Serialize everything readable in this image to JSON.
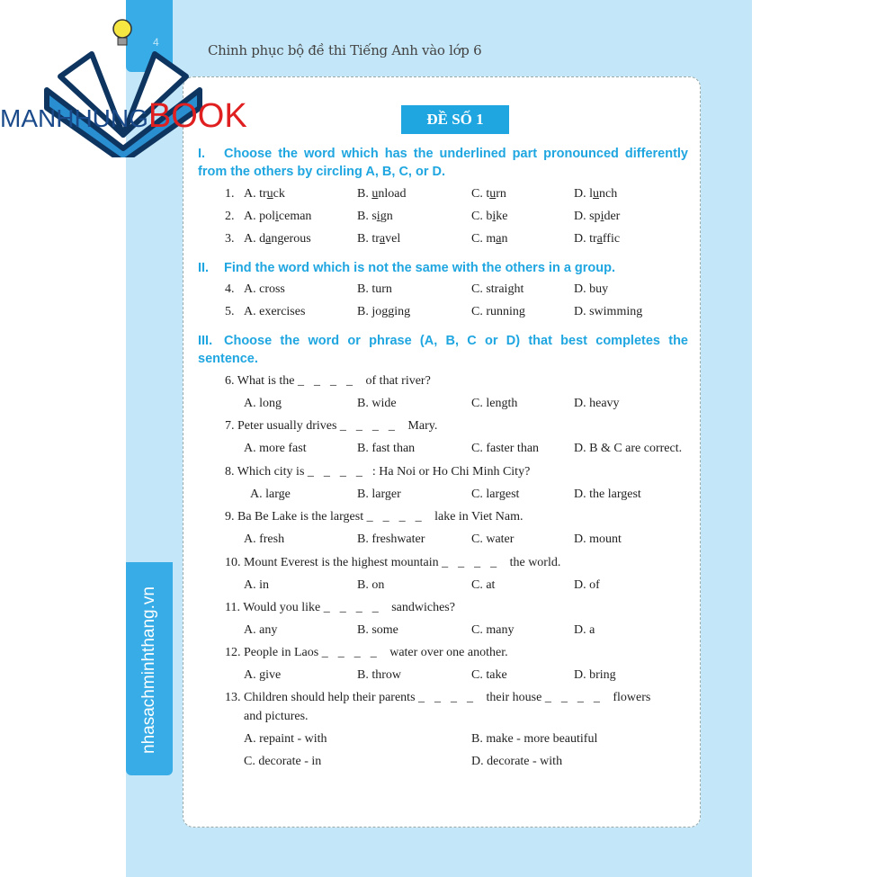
{
  "header": {
    "page_number": "4",
    "running_title": "Chinh phục bộ đề thi Tiếng Anh vào lớp 6"
  },
  "watermark": {
    "brand_part1": "MANHHUNG",
    "brand_part2": "BOOK"
  },
  "side_label": "nhasachminhthang.vn",
  "title": "ĐỀ SỐ 1",
  "colors": {
    "accent": "#1fa6e0",
    "background": "#c3e6f8",
    "brand_red": "#e02020",
    "brand_blue": "#1a4a8a"
  },
  "sections": [
    {
      "num": "I.",
      "text": "Choose the word which has the underlined part pronounced differently from the others by circling A, B, C, or D."
    },
    {
      "num": "II.",
      "text": "Find the word which is not the same with the others in a group."
    },
    {
      "num": "III.",
      "text": "Choose the word or phrase (A, B, C or D) that best completes the sentence."
    }
  ],
  "questions": [
    {
      "num": "1.",
      "options": [
        [
          "A. tr",
          "u",
          "ck"
        ],
        [
          "B. ",
          "u",
          "nload"
        ],
        [
          "C. t",
          "u",
          "rn"
        ],
        [
          "D. l",
          "u",
          "nch"
        ]
      ]
    },
    {
      "num": "2.",
      "options": [
        [
          "A. pol",
          "i",
          "ceman"
        ],
        [
          "B. s",
          "i",
          "gn"
        ],
        [
          "C. b",
          "i",
          "ke"
        ],
        [
          "D. sp",
          "i",
          "der"
        ]
      ]
    },
    {
      "num": "3.",
      "options": [
        [
          "A. d",
          "a",
          "ngerous"
        ],
        [
          "B. tr",
          "a",
          "vel"
        ],
        [
          "C. m",
          "a",
          "n"
        ],
        [
          "D. tr",
          "a",
          "ffic"
        ]
      ]
    },
    {
      "num": "4.",
      "options": [
        [
          "A. cross"
        ],
        [
          "B. turn"
        ],
        [
          "C. straight"
        ],
        [
          "D. buy"
        ]
      ]
    },
    {
      "num": "5.",
      "options": [
        [
          "A. exercises"
        ],
        [
          "B. jogging"
        ],
        [
          "C. running"
        ],
        [
          "D. swimming"
        ]
      ]
    },
    {
      "num": "6.",
      "stem": [
        "What is the ",
        "____",
        " of that river?"
      ],
      "options": [
        [
          "A. long"
        ],
        [
          "B. wide"
        ],
        [
          "C. length"
        ],
        [
          "D. heavy"
        ]
      ]
    },
    {
      "num": "7.",
      "stem": [
        "Peter usually drives ",
        "____",
        " Mary."
      ],
      "options": [
        [
          "A. more fast"
        ],
        [
          "B. fast than"
        ],
        [
          "C. faster than"
        ],
        [
          "D. B & C are correct."
        ]
      ]
    },
    {
      "num": "8.",
      "stem": [
        "Which city is ",
        "____",
        ": Ha Noi or Ho Chi Minh City?"
      ],
      "options": [
        [
          "A. large"
        ],
        [
          "B. larger"
        ],
        [
          "C. largest"
        ],
        [
          "D. the largest"
        ]
      ]
    },
    {
      "num": "9.",
      "stem": [
        "Ba Be Lake is the largest ",
        "____",
        " lake in Viet Nam."
      ],
      "options": [
        [
          "A. fresh"
        ],
        [
          "B. freshwater"
        ],
        [
          "C. water"
        ],
        [
          "D. mount"
        ]
      ]
    },
    {
      "num": "10.",
      "stem": [
        "Mount Everest is the highest mountain ",
        "____",
        " the world."
      ],
      "options": [
        [
          "A. in"
        ],
        [
          "B. on"
        ],
        [
          "C. at"
        ],
        [
          "D. of"
        ]
      ]
    },
    {
      "num": "11.",
      "stem": [
        "Would you like ",
        "____",
        " sandwiches?"
      ],
      "options": [
        [
          "A. any"
        ],
        [
          "B. some"
        ],
        [
          "C. many"
        ],
        [
          "D. a"
        ]
      ]
    },
    {
      "num": "12.",
      "stem": [
        "People in Laos ",
        "____",
        " water over one another."
      ],
      "options": [
        [
          "A. give"
        ],
        [
          "B. throw"
        ],
        [
          "C. take"
        ],
        [
          "D. bring"
        ]
      ]
    },
    {
      "num": "13.",
      "stem": [
        "Children should help their parents ",
        "____",
        " their house ",
        "____",
        " flowers"
      ],
      "stem2": "and pictures.",
      "options": [
        [
          "A. repaint - with"
        ],
        [
          "B. make - more beautiful"
        ],
        [
          "C. decorate - in"
        ],
        [
          "D. decorate - with"
        ]
      ]
    }
  ]
}
